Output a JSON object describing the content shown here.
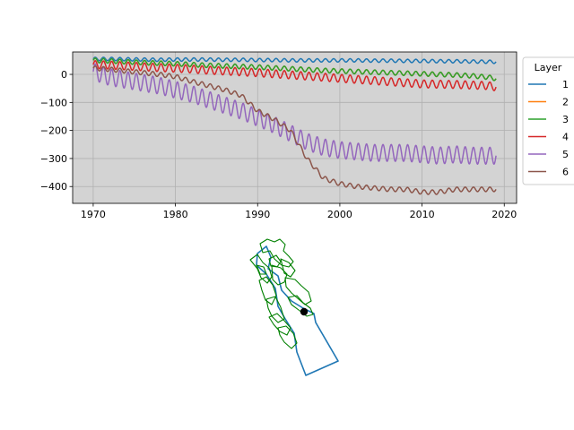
{
  "chart_data": [
    {
      "type": "line",
      "title": "",
      "xlabel": "",
      "ylabel": "",
      "xlim": [
        1967.5,
        2021.5
      ],
      "ylim": [
        -460,
        80
      ],
      "xticks": [
        1970,
        1980,
        1990,
        2000,
        2010,
        2020
      ],
      "yticks": [
        0,
        -100,
        -200,
        -300,
        -400
      ],
      "grid": true,
      "background": "#d3d3d3",
      "legend": {
        "title": "Layer",
        "placement": "right-outside-top"
      },
      "x": [
        1970,
        1972,
        1974,
        1976,
        1978,
        1980,
        1982,
        1984,
        1986,
        1988,
        1990,
        1992,
        1994,
        1996,
        1998,
        2000,
        2002,
        2004,
        2006,
        2008,
        2010,
        2012,
        2014,
        2016,
        2018,
        2019
      ],
      "seasonal_amplitude": [
        6,
        8,
        8,
        8,
        8,
        10,
        14,
        30
      ],
      "series": [
        {
          "name": "1",
          "color": "#1f77b4",
          "amp": 6,
          "values": [
            55,
            55,
            54,
            53,
            52,
            53,
            53,
            53,
            52,
            52,
            51,
            51,
            50,
            50,
            50,
            50,
            50,
            49,
            49,
            48,
            48,
            47,
            47,
            46,
            45,
            45
          ]
        },
        {
          "name": "2",
          "color": "#ff7f0e",
          "amp": 8,
          "values": [
            50,
            48,
            45,
            42,
            40,
            38,
            35,
            32,
            30,
            28,
            26,
            23,
            20,
            17,
            14,
            12,
            10,
            8,
            6,
            4,
            2,
            0,
            -2,
            -5,
            -10,
            -15
          ]
        },
        {
          "name": "3",
          "color": "#2ca02c",
          "amp": 8,
          "values": [
            50,
            48,
            45,
            42,
            40,
            38,
            35,
            32,
            30,
            28,
            26,
            23,
            20,
            17,
            14,
            12,
            10,
            8,
            6,
            4,
            2,
            0,
            -2,
            -5,
            -10,
            -15
          ]
        },
        {
          "name": "4",
          "color": "#d62728",
          "amp": 14,
          "values": [
            35,
            33,
            30,
            27,
            24,
            22,
            19,
            15,
            12,
            9,
            6,
            2,
            -2,
            -6,
            -10,
            -14,
            -18,
            -22,
            -26,
            -30,
            -34,
            -35,
            -36,
            -38,
            -40,
            -45
          ]
        },
        {
          "name": "5",
          "color": "#9467bd",
          "amp": 30,
          "values": [
            10,
            -10,
            -20,
            -30,
            -40,
            -55,
            -70,
            -90,
            -110,
            -130,
            -155,
            -180,
            -210,
            -240,
            -260,
            -270,
            -275,
            -280,
            -280,
            -280,
            -285,
            -290,
            -285,
            -290,
            -290,
            -290
          ]
        },
        {
          "name": "6",
          "color": "#8c564b",
          "amp": 8,
          "values": [
            22,
            18,
            12,
            6,
            0,
            -8,
            -25,
            -40,
            -55,
            -75,
            -130,
            -160,
            -200,
            -300,
            -370,
            -390,
            -400,
            -405,
            -410,
            -410,
            -420,
            -420,
            -410,
            -410,
            -410,
            -410
          ]
        }
      ]
    },
    {
      "type": "map",
      "boundary_color": "#1f77b4",
      "subbasin_color": "#008000",
      "point_color": "#000000"
    }
  ]
}
